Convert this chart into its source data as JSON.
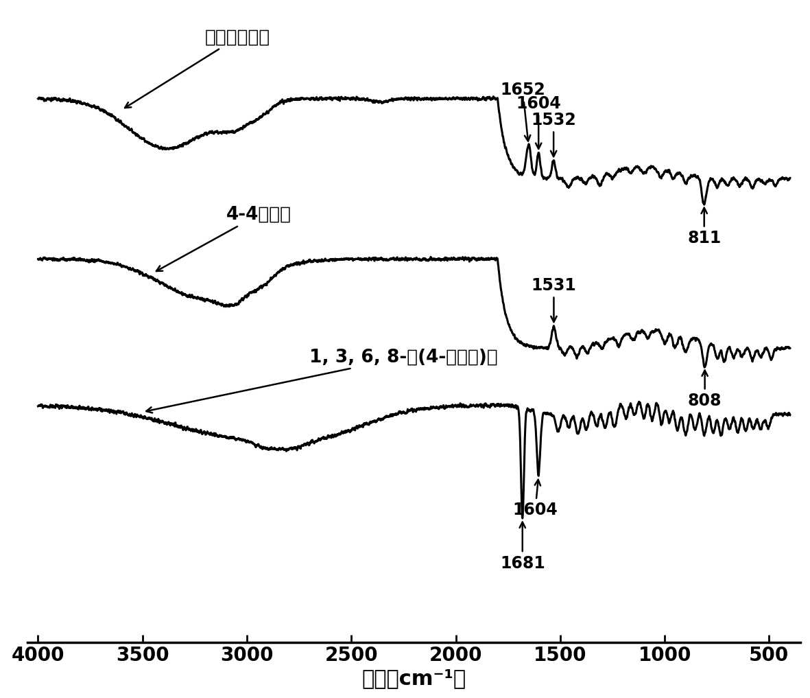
{
  "xlabel": "波数（cm⁻¹）",
  "xmin": 4000,
  "xmax": 400,
  "background_color": "#ffffff",
  "line_color": "#000000",
  "label1": "金属有机凝胶",
  "label2": "4-4联吠娜",
  "label3": "1, 3, 6, 8-四(4-羞基苯)芙",
  "tick_fontsize": 20,
  "label_fontsize": 22,
  "annotation_fontsize": 17,
  "spectra_label_fontsize": 19
}
